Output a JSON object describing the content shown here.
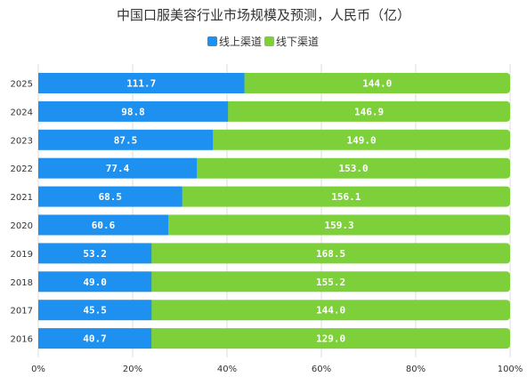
{
  "chart_data": {
    "type": "bar",
    "orientation": "horizontal",
    "stacked": "percent",
    "title": "中国口服美容行业市场规模及预测，人民币（亿）",
    "legend_position": "top",
    "categories": [
      "2025",
      "2024",
      "2023",
      "2022",
      "2021",
      "2020",
      "2019",
      "2018",
      "2017",
      "2016"
    ],
    "series": [
      {
        "name": "线上渠道",
        "color": "#1E90F0",
        "values": [
          111.7,
          98.8,
          87.5,
          77.4,
          68.5,
          60.6,
          53.2,
          49.0,
          45.5,
          40.7
        ],
        "labels": [
          "111.7",
          "98.8",
          "87.5",
          "77.4",
          "68.5",
          "60.6",
          "53.2",
          "49.0",
          "45.5",
          "40.7"
        ]
      },
      {
        "name": "线下渠道",
        "color": "#7ED03A",
        "values": [
          144.0,
          146.9,
          149.0,
          153.0,
          156.1,
          159.3,
          168.5,
          155.2,
          144.0,
          129.0
        ],
        "labels": [
          "144.0",
          "146.9",
          "149.0",
          "153.0",
          "156.1",
          "159.3",
          "168.5",
          "155.2",
          "144.0",
          "129.0"
        ]
      }
    ],
    "xticks": [
      "0%",
      "20%",
      "40%",
      "60%",
      "80%",
      "100%"
    ],
    "xlim": [
      0,
      100
    ],
    "grid": "vertical"
  }
}
